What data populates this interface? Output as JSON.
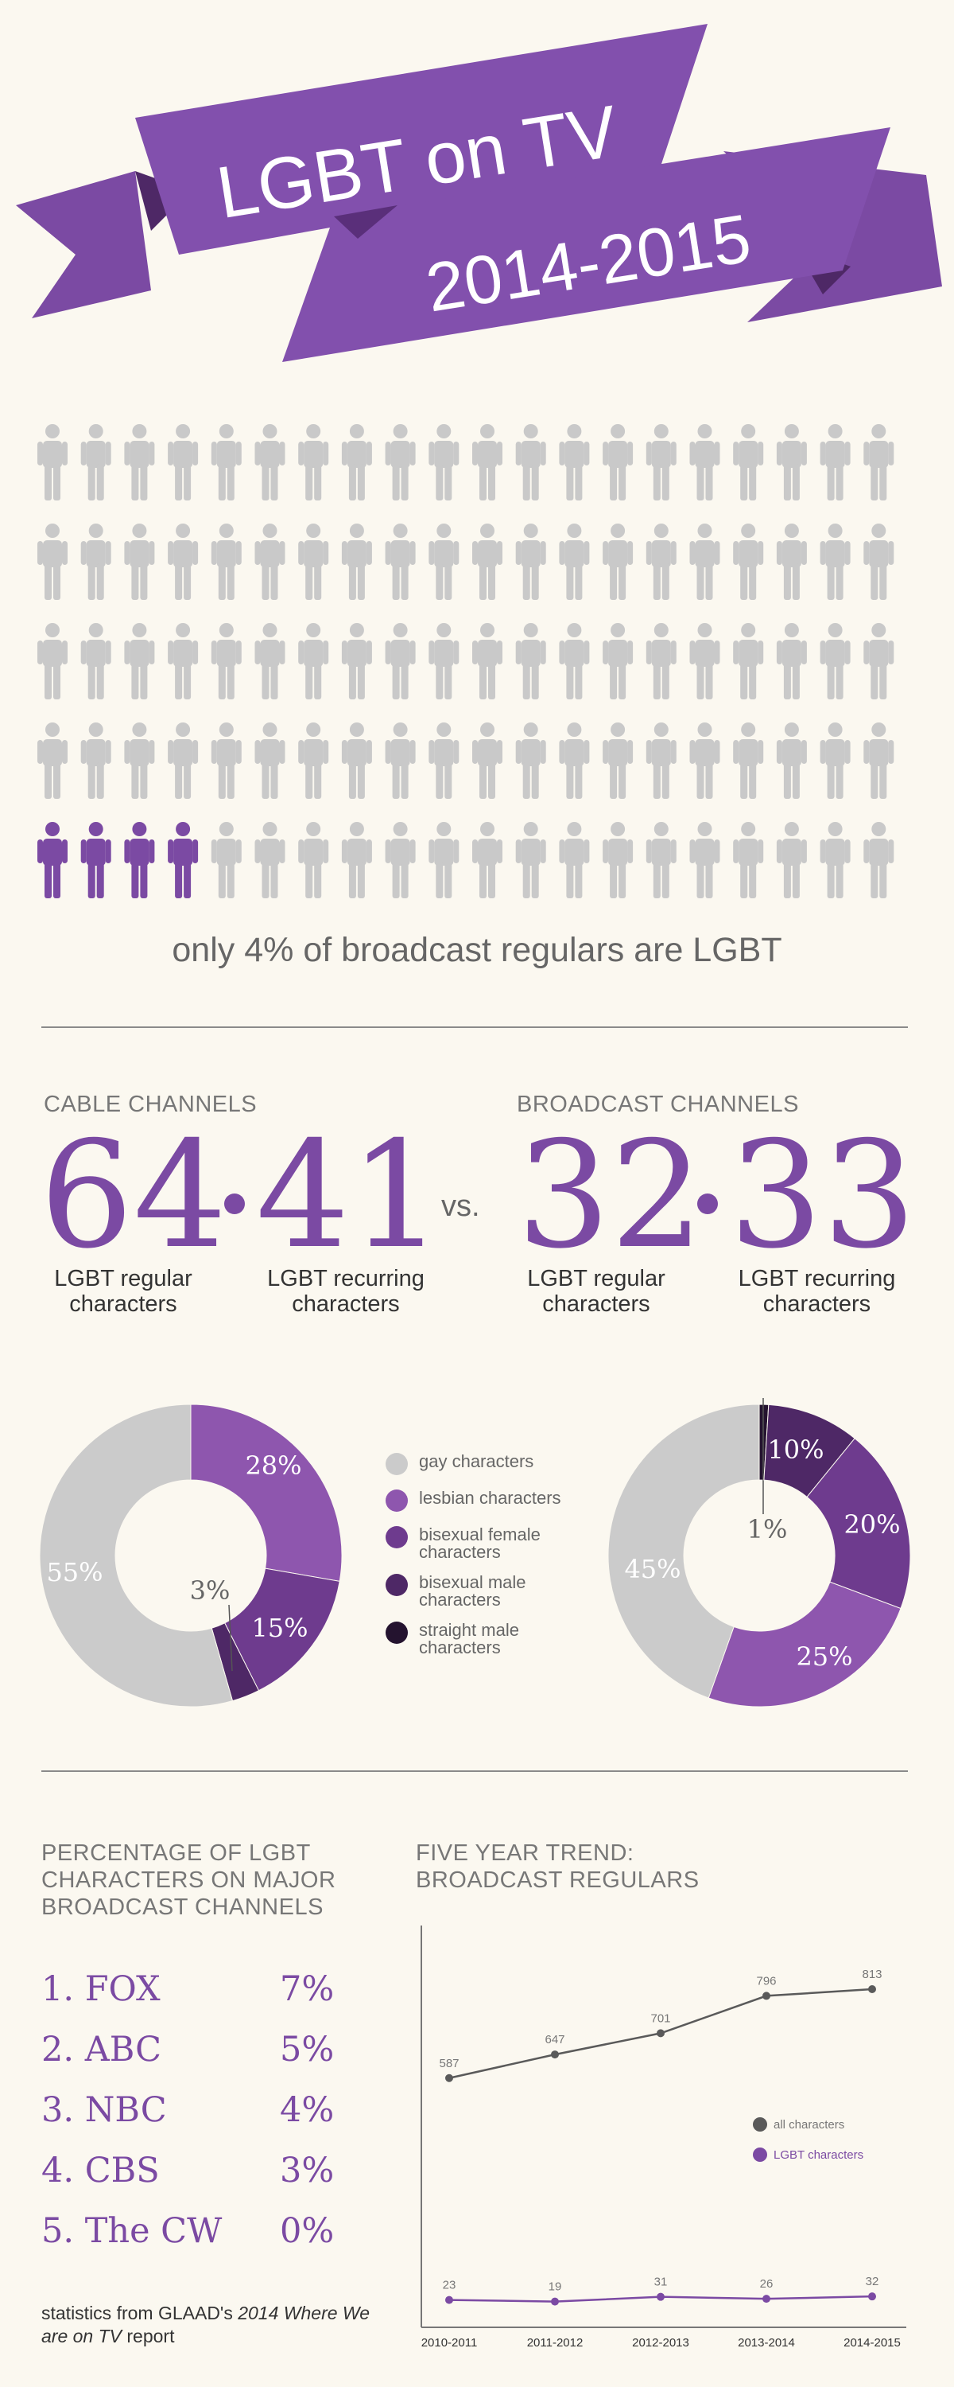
{
  "banner": {
    "line1": "LGBT on TV",
    "line2": "2014-2015",
    "color": "#7b4aa3"
  },
  "pictogram": {
    "rows": 5,
    "cols": 20,
    "highlighted": 4,
    "total": 100,
    "icon": "person-icon",
    "caption": "only 4% of broadcast regulars are LGBT"
  },
  "cable": {
    "label": "CABLE CHANNELS",
    "regular": "64",
    "recurring": "41",
    "regular_label": "LGBT regular characters",
    "recurring_label": "LGBT recurring characters"
  },
  "vs": "vs.",
  "broadcast": {
    "label": "BROADCAST CHANNELS",
    "regular": "32",
    "recurring": "33",
    "regular_label": "LGBT regular characters",
    "recurring_label": "LGBT recurring characters"
  },
  "legend": [
    {
      "label": "gay characters",
      "color": "#cbcbcb"
    },
    {
      "label": "lesbian characters",
      "color": "#8e56ae"
    },
    {
      "label": "bisexual female characters",
      "color": "#6e3b8e"
    },
    {
      "label": "bisexual male characters",
      "color": "#4e2866"
    },
    {
      "label": "straight male characters",
      "color": "#24132f"
    }
  ],
  "ranking": {
    "title": [
      "PERCENTAGE OF LGBT",
      "CHARACTERS ON MAJOR",
      "BROADCAST CHANNELS"
    ],
    "items": [
      {
        "name": "1. FOX",
        "value": "7%"
      },
      {
        "name": "2. ABC",
        "value": "5%"
      },
      {
        "name": "3. NBC",
        "value": "4%"
      },
      {
        "name": "4. CBS",
        "value": "3%"
      },
      {
        "name": "5. The CW",
        "value": "0%"
      }
    ]
  },
  "source": {
    "prefix": "statistics from GLAAD's ",
    "italic": "2014 Where We are on TV",
    "suffix": " report"
  },
  "chart_data": [
    {
      "type": "pie",
      "id": "cable-donut",
      "slices": [
        {
          "name": "lesbian characters",
          "value": 28,
          "label": "28%",
          "color": "#8e56ae"
        },
        {
          "name": "bisexual female characters",
          "value": 15,
          "label": "15%",
          "color": "#6e3b8e"
        },
        {
          "name": "bisexual male characters",
          "value": 3,
          "label": "3%",
          "color": "#4e2866"
        },
        {
          "name": "gay characters",
          "value": 55,
          "label": "55%",
          "color": "#cbcbcb"
        }
      ]
    },
    {
      "type": "pie",
      "id": "broadcast-donut",
      "slices": [
        {
          "name": "straight male characters",
          "value": 1,
          "label": "1%",
          "color": "#24132f"
        },
        {
          "name": "bisexual male characters",
          "value": 10,
          "label": "10%",
          "color": "#4e2866"
        },
        {
          "name": "bisexual female characters",
          "value": 20,
          "label": "20%",
          "color": "#6e3b8e"
        },
        {
          "name": "lesbian characters",
          "value": 25,
          "label": "25%",
          "color": "#8e56ae"
        },
        {
          "name": "gay characters",
          "value": 45,
          "label": "45%",
          "color": "#cbcbcb"
        }
      ]
    },
    {
      "type": "line",
      "id": "five-year-trend",
      "title": [
        "FIVE YEAR TREND:",
        "BROADCAST REGULARS"
      ],
      "categories": [
        "2010-2011",
        "2011-2012",
        "2012-2013",
        "2013-2014",
        "2014-2015"
      ],
      "series": [
        {
          "name": "all characters",
          "values": [
            587,
            647,
            701,
            796,
            813
          ],
          "color": "#5a5a5a"
        },
        {
          "name": "LGBT characters",
          "values": [
            23,
            19,
            31,
            26,
            32
          ],
          "color": "#7b4aa3"
        }
      ],
      "ylim": [
        0,
        900
      ],
      "legend_position": "right-middle"
    }
  ]
}
